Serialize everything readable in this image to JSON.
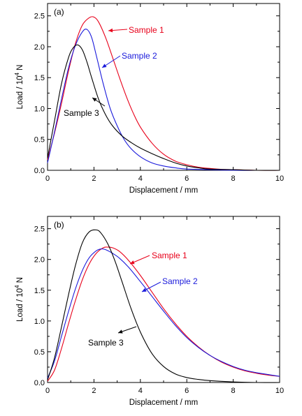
{
  "chart_data": [
    {
      "type": "line",
      "panel_label": "(a)",
      "xlabel": "Displacement / mm",
      "ylabel_base": "Load / 10",
      "ylabel_exp": "4",
      "ylabel_unit": " N",
      "xlim": [
        0,
        10
      ],
      "ylim": [
        0,
        2.7
      ],
      "xticks": [
        "0",
        "2",
        "4",
        "6",
        "8",
        "10"
      ],
      "yticks": [
        "0.0",
        "0.5",
        "1.0",
        "1.5",
        "2.0",
        "2.5"
      ],
      "grid": false,
      "series": [
        {
          "name": "Sample 1",
          "color": "#e8001a",
          "x": [
            0,
            0.3,
            0.6,
            0.9,
            1.2,
            1.5,
            1.8,
            2.0,
            2.2,
            2.5,
            2.8,
            3.1,
            3.4,
            3.7,
            4.0,
            4.5,
            5.0,
            5.5,
            6.0,
            6.5,
            7.0,
            7.5,
            8.0,
            9.0,
            10.0
          ],
          "y": [
            0.17,
            0.6,
            1.08,
            1.6,
            2.05,
            2.35,
            2.47,
            2.48,
            2.4,
            2.15,
            1.83,
            1.5,
            1.19,
            0.92,
            0.7,
            0.44,
            0.26,
            0.15,
            0.09,
            0.05,
            0.03,
            0.015,
            0.01,
            0.0,
            0.0
          ]
        },
        {
          "name": "Sample 2",
          "color": "#1a1adb",
          "x": [
            0,
            0.3,
            0.6,
            0.9,
            1.2,
            1.5,
            1.7,
            1.9,
            2.1,
            2.4,
            2.7,
            3.0,
            3.3,
            3.6,
            4.0,
            4.5,
            5.0,
            5.5,
            6.0,
            7.0,
            8.0,
            9.0,
            10.0
          ],
          "y": [
            0.12,
            0.62,
            1.15,
            1.65,
            2.02,
            2.24,
            2.28,
            2.15,
            1.86,
            1.4,
            1.0,
            0.72,
            0.5,
            0.35,
            0.22,
            0.12,
            0.07,
            0.04,
            0.02,
            0.01,
            0.0,
            0.0,
            0.0
          ]
        },
        {
          "name": "Sample 3",
          "color": "#000000",
          "x": [
            0,
            0.3,
            0.6,
            0.9,
            1.1,
            1.3,
            1.5,
            1.7,
            1.9,
            2.2,
            2.5,
            2.8,
            3.2,
            3.6,
            4.0,
            4.5,
            5.0,
            5.5,
            6.0,
            6.5,
            7.0,
            8.0,
            9.0,
            10.0
          ],
          "y": [
            0.2,
            0.8,
            1.4,
            1.82,
            1.98,
            2.03,
            1.95,
            1.75,
            1.5,
            1.15,
            0.9,
            0.72,
            0.56,
            0.45,
            0.36,
            0.27,
            0.19,
            0.12,
            0.07,
            0.04,
            0.02,
            0.01,
            0.0,
            0.0
          ]
        }
      ]
    },
    {
      "type": "line",
      "panel_label": "(b)",
      "xlabel": "Displacement / mm",
      "ylabel_base": "Load / 10",
      "ylabel_exp": "4",
      "ylabel_unit": " N",
      "xlim": [
        0,
        10
      ],
      "ylim": [
        0,
        2.7
      ],
      "xticks": [
        "0",
        "2",
        "4",
        "6",
        "8",
        "10"
      ],
      "yticks": [
        "0.0",
        "0.5",
        "1.0",
        "1.5",
        "2.0",
        "2.5"
      ],
      "grid": false,
      "series": [
        {
          "name": "Sample 1",
          "color": "#e8001a",
          "x": [
            0,
            0.3,
            0.6,
            0.9,
            1.2,
            1.5,
            1.8,
            2.1,
            2.4,
            2.6,
            2.8,
            3.1,
            3.5,
            4.0,
            4.5,
            5.0,
            5.5,
            6.0,
            6.5,
            7.0,
            7.5,
            8.0,
            8.5,
            9.0,
            9.5,
            10.0
          ],
          "y": [
            0.02,
            0.2,
            0.55,
            0.95,
            1.33,
            1.67,
            1.93,
            2.1,
            2.19,
            2.2,
            2.19,
            2.13,
            1.98,
            1.74,
            1.47,
            1.2,
            0.96,
            0.75,
            0.58,
            0.44,
            0.33,
            0.25,
            0.19,
            0.15,
            0.12,
            0.1
          ]
        },
        {
          "name": "Sample 2",
          "color": "#1a1adb",
          "x": [
            0,
            0.3,
            0.6,
            0.9,
            1.2,
            1.5,
            1.8,
            2.1,
            2.3,
            2.5,
            2.8,
            3.1,
            3.5,
            4.0,
            4.5,
            5.0,
            5.5,
            6.0,
            6.5,
            7.0,
            7.5,
            8.0,
            8.5,
            9.0,
            9.5,
            10.0
          ],
          "y": [
            0.07,
            0.35,
            0.75,
            1.15,
            1.52,
            1.82,
            2.03,
            2.14,
            2.17,
            2.16,
            2.1,
            2.02,
            1.87,
            1.64,
            1.4,
            1.16,
            0.93,
            0.73,
            0.57,
            0.44,
            0.34,
            0.26,
            0.2,
            0.16,
            0.13,
            0.1
          ]
        },
        {
          "name": "Sample 3",
          "color": "#000000",
          "x": [
            0,
            0.3,
            0.6,
            0.9,
            1.2,
            1.5,
            1.8,
            2.1,
            2.3,
            2.6,
            2.9,
            3.2,
            3.6,
            4.0,
            4.5,
            5.0,
            5.5,
            6.0,
            6.5,
            7.0,
            8.0,
            9.0,
            10.0
          ],
          "y": [
            0.04,
            0.4,
            0.9,
            1.42,
            1.9,
            2.27,
            2.45,
            2.48,
            2.43,
            2.25,
            1.98,
            1.65,
            1.2,
            0.82,
            0.47,
            0.26,
            0.14,
            0.08,
            0.05,
            0.03,
            0.01,
            0.0,
            0.0
          ]
        }
      ]
    }
  ]
}
